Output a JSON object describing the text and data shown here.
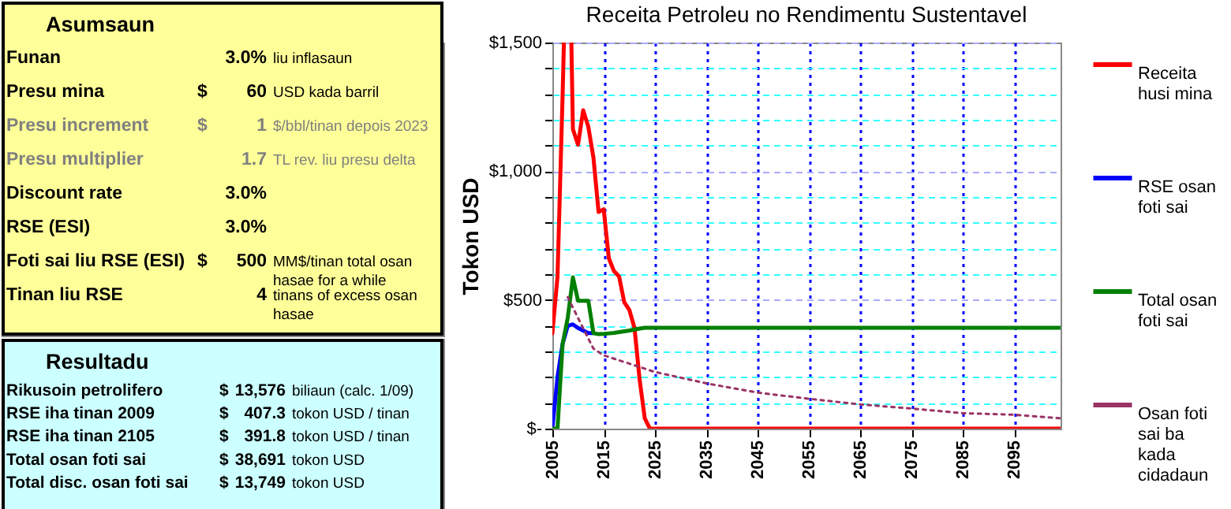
{
  "chart_data": [
    {
      "type": "other",
      "title": "Asumsaun",
      "colors": [
        "#000000",
        "#000000",
        "#808080",
        "#808080",
        "#000000",
        "#000000",
        "#000000",
        "#000000"
      ],
      "cell_labels": [
        [
          "Funan",
          null,
          "3.0%",
          "liu inflasaun"
        ],
        [
          "Presu mina",
          "$",
          "60",
          "USD kada barril"
        ],
        [
          "Presu increment",
          "$",
          "1",
          "$/bbl/tinan depois 2023"
        ],
        [
          "Presu multiplier",
          null,
          "1.7",
          "TL rev. liu presu delta"
        ],
        [
          "Discount rate",
          null,
          "3.0%",
          null
        ],
        [
          "RSE (ESI)",
          null,
          "3.0%",
          null
        ],
        [
          "Foti sai liu RSE (ESI)",
          "$",
          "500",
          "MM$/tinan total osan hasae for a while"
        ],
        [
          "Tinan liu RSE",
          null,
          "4",
          "tinans of excess osan hasae"
        ]
      ]
    },
    {
      "type": "other",
      "title": "Resultadu",
      "cell_labels": [
        [
          "Rikusoin petrolifero",
          "$",
          "13,576",
          "biliaun (calc. 1/09)"
        ],
        [
          "RSE iha tinan 2009",
          "$",
          "407.3",
          "tokon USD / tinan"
        ],
        [
          "RSE iha tinan 2105",
          "$",
          "391.8",
          "tokon USD / tinan"
        ],
        [
          "Total osan foti sai",
          "$",
          "38,691",
          "tokon USD"
        ],
        [
          "Total disc. osan foti sai",
          "$",
          "13,749",
          "tokon USD"
        ]
      ]
    },
    {
      "type": "line",
      "title": "Receita Petroleu no Rendimentu Sustentavel",
      "ylabel": "Tokon USD",
      "xlim": [
        2005,
        2104
      ],
      "xticks": [
        2005,
        2015,
        2025,
        2035,
        2045,
        2055,
        2065,
        2075,
        2085,
        2095
      ],
      "ylim": [
        0,
        1500
      ],
      "yticks": [
        {
          "value": 0,
          "label": "$-"
        },
        {
          "value": 100,
          "label": null
        },
        {
          "value": 200,
          "label": null
        },
        {
          "value": 300,
          "label": null
        },
        {
          "value": 400,
          "label": null
        },
        {
          "value": 500,
          "label": "$500"
        },
        {
          "value": 600,
          "label": null
        },
        {
          "value": 700,
          "label": null
        },
        {
          "value": 800,
          "label": null
        },
        {
          "value": 900,
          "label": null
        },
        {
          "value": 1000,
          "label": "$1,000"
        },
        {
          "value": 1100,
          "label": null
        },
        {
          "value": 1200,
          "label": null
        },
        {
          "value": 1300,
          "label": null
        },
        {
          "value": 1400,
          "label": null
        },
        {
          "value": 1500,
          "label": "$1,500"
        }
      ],
      "grid": true,
      "legend": "right",
      "marker": "none",
      "series": [
        {
          "name": "Receita husi mina",
          "color": "#ff0000",
          "line_style": "solid",
          "x": [
            2005,
            2006,
            2007,
            2007.25,
            2007.6,
            2008.7,
            2009,
            2010,
            2011,
            2012,
            2013,
            2014,
            2015,
            2016,
            2017,
            2018,
            2019,
            2020,
            2021,
            2022,
            2023,
            2024,
            2104
          ],
          "values": [
            370,
            590,
            1300,
            1500,
            null,
            1500,
            1163,
            1103,
            1237,
            1173,
            1053,
            842,
            852,
            662,
            612,
            591,
            491,
            461,
            391,
            190,
            40,
            0,
            0
          ]
        },
        {
          "name": "RSE osan foti sai",
          "color": "#0000ff",
          "line_style": "solid",
          "x": [
            2005,
            2006,
            2007,
            2008,
            2009,
            2010,
            2011,
            2012,
            2013
          ],
          "values": [
            0,
            200,
            330,
            400,
            405,
            391,
            381,
            371,
            371
          ]
        },
        {
          "name": "Total osan foti sai",
          "color": "#008000",
          "line_style": "solid",
          "x": [
            2005,
            2006,
            2007,
            2008,
            2009,
            2010,
            2011,
            2012,
            2013,
            2014,
            2015,
            2016,
            2017,
            2018,
            2019,
            2020,
            2021,
            2022,
            2023,
            2024,
            2104
          ],
          "values": [
            0,
            0,
            330,
            431,
            588,
            497,
            497,
            497,
            371,
            367,
            368,
            370,
            372,
            375,
            378,
            381,
            385,
            389,
            392,
            392,
            392
          ]
        },
        {
          "name": "Osan foti sai ba kada cidadaun",
          "color": "#993366",
          "line_style": "dotted",
          "x": [
            2008,
            2009,
            2010,
            2011,
            2012,
            2013,
            2015,
            2025,
            2035,
            2045,
            2055,
            2065,
            2075,
            2085,
            2095,
            2104
          ],
          "values": [
            511,
            470,
            430,
            390,
            350,
            311,
            285,
            220,
            176,
            140,
            116,
            94,
            78,
            60,
            54,
            40
          ]
        }
      ]
    }
  ]
}
